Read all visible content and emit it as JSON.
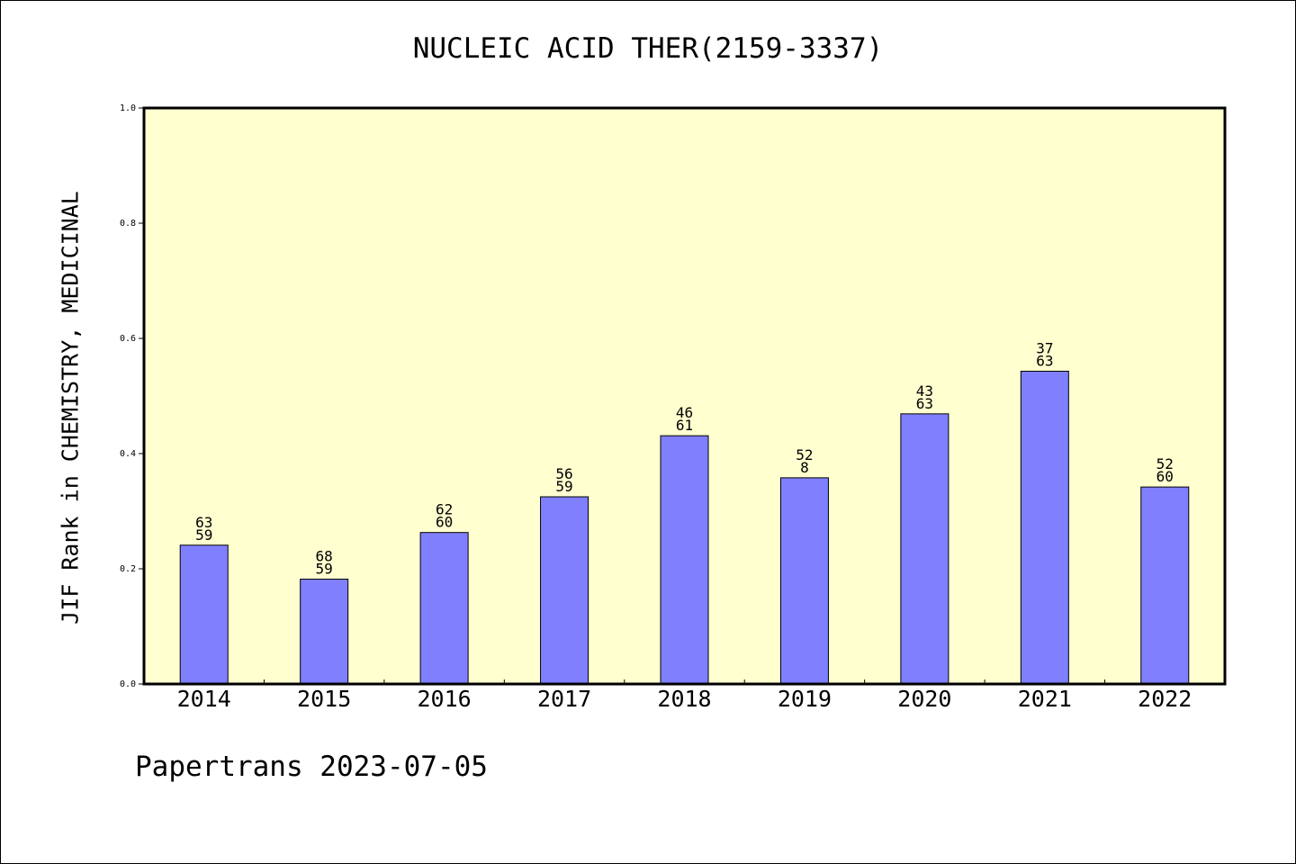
{
  "chart_data": {
    "type": "bar",
    "title": "NUCLEIC ACID THER(2159-3337)",
    "xlabel": "",
    "ylabel": "JIF Rank in CHEMISTRY, MEDICINAL",
    "ylim": [
      0.0,
      1.0
    ],
    "yticks": [
      "0.0",
      "0.2",
      "0.4",
      "0.6",
      "0.8",
      "1.0"
    ],
    "categories": [
      "2014",
      "2015",
      "2016",
      "2017",
      "2018",
      "2019",
      "2020",
      "2021",
      "2022"
    ],
    "values": [
      0.241,
      0.182,
      0.263,
      0.325,
      0.431,
      0.358,
      0.469,
      0.543,
      0.342
    ],
    "rank_labels": [
      [
        "63",
        "59"
      ],
      [
        "68",
        "59"
      ],
      [
        "62",
        "60"
      ],
      [
        "56",
        "59"
      ],
      [
        "46",
        "61"
      ],
      [
        "52",
        "8"
      ],
      [
        "43",
        "63"
      ],
      [
        "37",
        "63"
      ],
      [
        "52",
        "60"
      ]
    ],
    "grid": false,
    "colors": {
      "bar": "#8080ff",
      "plot_background": "#ffffd0",
      "axis": "#000000"
    }
  },
  "footer": "Papertrans 2023-07-05"
}
